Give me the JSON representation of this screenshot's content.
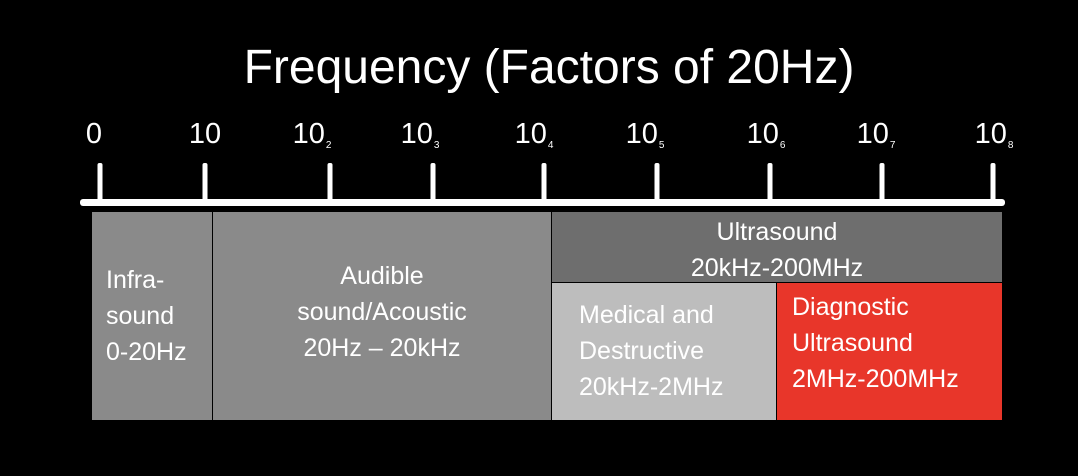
{
  "title": "Frequency (Factors of 20Hz)",
  "axis": {
    "ticks": [
      {
        "base": "0",
        "exp": ""
      },
      {
        "base": "10",
        "exp": ""
      },
      {
        "base": "10",
        "exp": "2"
      },
      {
        "base": "10",
        "exp": "3"
      },
      {
        "base": "10",
        "exp": "4"
      },
      {
        "base": "10",
        "exp": "5"
      },
      {
        "base": "10",
        "exp": "6"
      },
      {
        "base": "10",
        "exp": "7"
      },
      {
        "base": "10",
        "exp": "8"
      }
    ]
  },
  "bands": {
    "infrasound": {
      "lines": [
        "Infra-",
        "sound",
        "0-20Hz"
      ],
      "color": "#8a8a8a"
    },
    "audible": {
      "lines": [
        "Audible",
        "sound/Acoustic",
        "20Hz – 20kHz"
      ],
      "color": "#8a8a8a"
    },
    "ultrasound": {
      "lines": [
        "Ultrasound",
        "20kHz-200MHz"
      ],
      "color": "#6e6e6e"
    },
    "medical": {
      "lines": [
        "Medical and",
        "Destructive",
        "20kHz-2MHz"
      ],
      "color": "#bdbdbd"
    },
    "diagnostic": {
      "lines": [
        "Diagnostic",
        "Ultrasound",
        "2MHz-200MHz"
      ],
      "color": "#e8362a"
    }
  }
}
